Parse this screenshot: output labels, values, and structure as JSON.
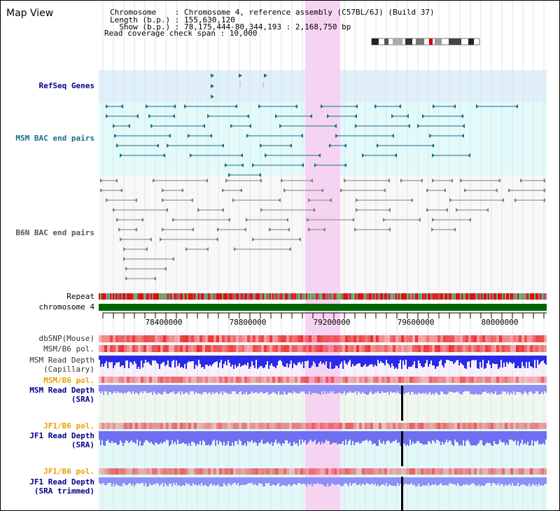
{
  "title": "Map View",
  "info": {
    "chromosome_line": "Chromosome    : Chromosome 4, reference assembly (C57BL/6J) (Build 37)",
    "length_line": "Length (b.p.) : 155,630,120",
    "show_line": "  Show (b.p.) : 78,175,444-80,344,193 : 2,168,750 bp",
    "coverage_line": "Read coverage check span : 10,000"
  },
  "tracks": {
    "refseq": "RefSeq Genes",
    "msm_bac": "MSM BAC end pairs",
    "b6n_bac": "B6N BAC end pairs",
    "repeat": "Repeat",
    "chromosome": "chromosome 4",
    "dbsnp": "dbSNP(Mouse)",
    "msm_b6_pol_1": "MSM/B6 pol.",
    "msm_read_depth_cap_1": "MSM Read Depth",
    "msm_read_depth_cap_2": "(Capillary)",
    "msm_b6_pol_2": "MSM/B6 pol.",
    "msm_read_depth_sra_1": "MSM Read Depth",
    "msm_read_depth_sra_2": "(SRA)",
    "jf1_b6_pol_1": "JF1/B6 pol.",
    "jf1_read_depth_sra_1": "JF1 Read Depth",
    "jf1_read_depth_sra_2": "(SRA)",
    "jf1_b6_pol_2": "JF1/B6 pol.",
    "jf1_read_depth_trim_1": "JF1 Read Depth",
    "jf1_read_depth_trim_2": "(SRA trimmed)"
  },
  "axis": {
    "ticks": [
      "78400000",
      "78800000",
      "79200000",
      "79600000",
      "80000000"
    ]
  },
  "colors": {
    "refseq_bg": "#dff0fa",
    "msm_bg": "#e2fafa",
    "b6n_bg": "#f8f8f8",
    "highlight": "#f7d3f3",
    "chromosome": "#006600",
    "msm_feature": "#1a6d8c",
    "b6n_feature": "#808080",
    "depth_blue": "#2a2ae8",
    "depth_light": "#8f8ff7",
    "label_blue": "#00008b",
    "label_orange": "#e8a000",
    "label_gray": "#333333"
  }
}
